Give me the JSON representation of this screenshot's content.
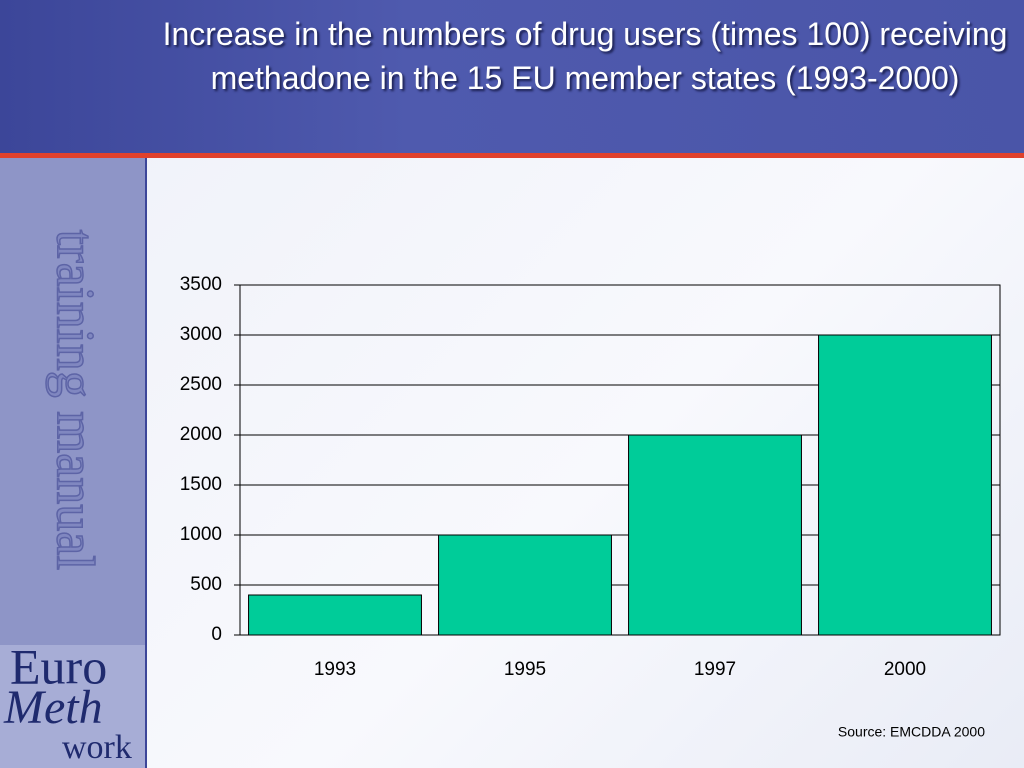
{
  "chart_data": {
    "type": "bar",
    "title": "Increase in the numbers of drug users (times 100) receiving methadone in the 15 EU member states (1993-2000)",
    "categories": [
      "1993",
      "1995",
      "1997",
      "2000"
    ],
    "values": [
      400,
      1000,
      2000,
      3000
    ],
    "color": "#00cc99",
    "ylim": [
      0,
      3500
    ],
    "yticks": [
      0,
      500,
      1000,
      1500,
      2000,
      2500,
      3000,
      3500
    ],
    "grid": true,
    "source": "Source: EMCDDA 2000"
  },
  "sidebar": {
    "label": "training manual",
    "logo": [
      "Euro",
      "Meth",
      "work"
    ]
  }
}
